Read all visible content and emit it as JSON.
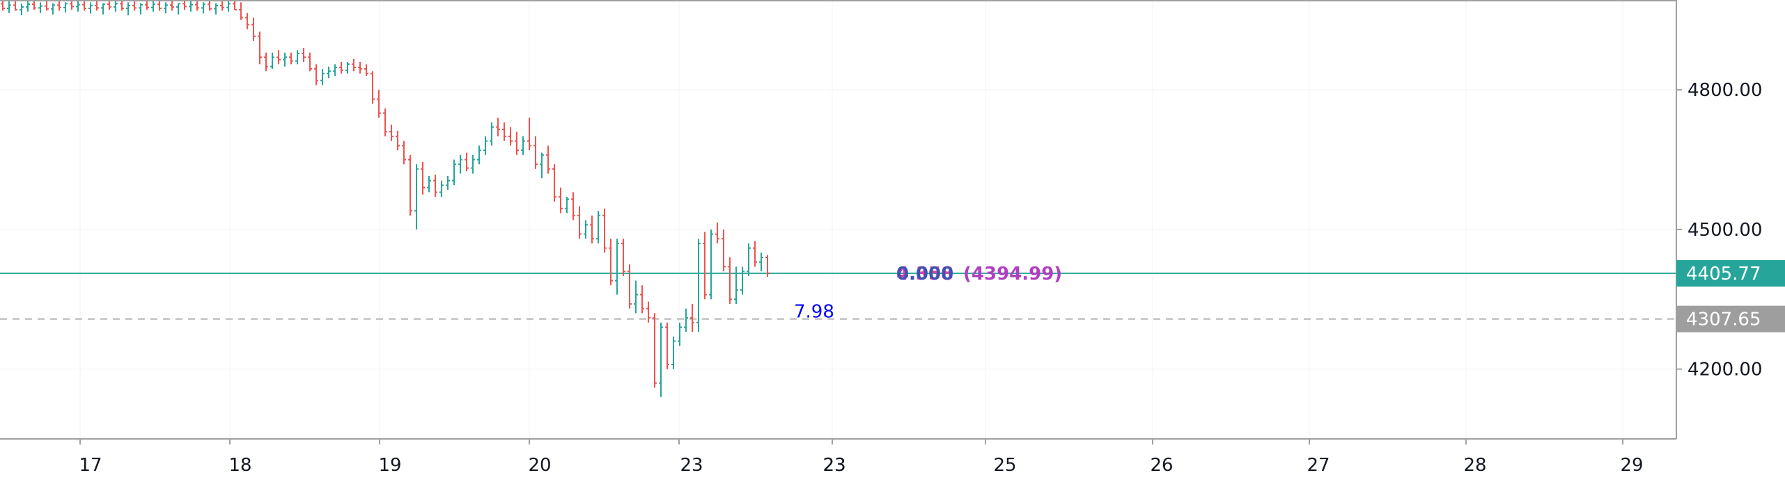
{
  "chart_data": {
    "type": "ohlc",
    "x_tick_labels": [
      "17",
      "18",
      "19",
      "20",
      "23",
      "23",
      "23",
      "25",
      "26",
      "27",
      "28",
      "29"
    ],
    "y_ticks": [
      4200,
      4500,
      4800
    ],
    "y_tick_labels": [
      "4200.00",
      "4500.00",
      "4800.00"
    ],
    "y_range": [
      4050,
      4990
    ],
    "grid": true,
    "bar_colors": {
      "up": "#26a69a",
      "down": "#ef5350"
    },
    "bars": [
      [
        4985,
        4990,
        4970,
        4975
      ],
      [
        4975,
        4990,
        4965,
        4982
      ],
      [
        4982,
        4990,
        4970,
        4972
      ],
      [
        4972,
        4985,
        4960,
        4978
      ],
      [
        4978,
        4990,
        4968,
        4984
      ],
      [
        4984,
        4990,
        4972,
        4976
      ],
      [
        4976,
        4988,
        4965,
        4980
      ],
      [
        4980,
        4990,
        4970,
        4974
      ],
      [
        4974,
        4986,
        4962,
        4982
      ],
      [
        4982,
        4990,
        4970,
        4977
      ],
      [
        4977,
        4988,
        4966,
        4985
      ],
      [
        4985,
        4990,
        4972,
        4979
      ],
      [
        4979,
        4990,
        4968,
        4983
      ],
      [
        4983,
        4990,
        4970,
        4975
      ],
      [
        4975,
        4988,
        4964,
        4981
      ],
      [
        4981,
        4990,
        4970,
        4976
      ],
      [
        4976,
        4986,
        4962,
        4984
      ],
      [
        4984,
        4990,
        4972,
        4978
      ],
      [
        4978,
        4990,
        4968,
        4985
      ],
      [
        4985,
        4990,
        4970,
        4975
      ],
      [
        4975,
        4988,
        4960,
        4981
      ],
      [
        4981,
        4990,
        4970,
        4976
      ],
      [
        4976,
        4986,
        4962,
        4983
      ],
      [
        4983,
        4990,
        4972,
        4977
      ],
      [
        4977,
        4990,
        4968,
        4984
      ],
      [
        4984,
        4990,
        4970,
        4975
      ],
      [
        4975,
        4988,
        4964,
        4982
      ],
      [
        4982,
        4990,
        4970,
        4978
      ],
      [
        4978,
        4986,
        4962,
        4985
      ],
      [
        4985,
        4990,
        4972,
        4979
      ],
      [
        4979,
        4990,
        4968,
        4983
      ],
      [
        4983,
        4990,
        4970,
        4976
      ],
      [
        4976,
        4988,
        4964,
        4984
      ],
      [
        4984,
        4990,
        4970,
        4974
      ],
      [
        4974,
        4986,
        4962,
        4981
      ],
      [
        4981,
        4990,
        4970,
        4977
      ],
      [
        4977,
        4990,
        4968,
        4985
      ],
      [
        4985,
        4990,
        4972,
        4972
      ],
      [
        4972,
        4988,
        4950,
        4955
      ],
      [
        4955,
        4965,
        4930,
        4940
      ],
      [
        4940,
        4955,
        4905,
        4915
      ],
      [
        4915,
        4925,
        4855,
        4870
      ],
      [
        4870,
        4880,
        4840,
        4850
      ],
      [
        4850,
        4880,
        4845,
        4870
      ],
      [
        4870,
        4885,
        4855,
        4865
      ],
      [
        4865,
        4880,
        4850,
        4870
      ],
      [
        4870,
        4880,
        4855,
        4862
      ],
      [
        4862,
        4885,
        4855,
        4878
      ],
      [
        4878,
        4890,
        4860,
        4870
      ],
      [
        4870,
        4880,
        4840,
        4845
      ],
      [
        4845,
        4855,
        4810,
        4820
      ],
      [
        4820,
        4845,
        4810,
        4835
      ],
      [
        4835,
        4850,
        4825,
        4840
      ],
      [
        4840,
        4855,
        4830,
        4848
      ],
      [
        4848,
        4860,
        4835,
        4842
      ],
      [
        4842,
        4860,
        4835,
        4855
      ],
      [
        4855,
        4866,
        4840,
        4848
      ],
      [
        4848,
        4860,
        4835,
        4845
      ],
      [
        4845,
        4855,
        4830,
        4835
      ],
      [
        4835,
        4840,
        4770,
        4780
      ],
      [
        4780,
        4800,
        4740,
        4750
      ],
      [
        4750,
        4760,
        4700,
        4710
      ],
      [
        4710,
        4725,
        4690,
        4700
      ],
      [
        4700,
        4712,
        4670,
        4680
      ],
      [
        4680,
        4690,
        4640,
        4650
      ],
      [
        4650,
        4660,
        4530,
        4540
      ],
      [
        4540,
        4640,
        4500,
        4630
      ],
      [
        4630,
        4645,
        4575,
        4590
      ],
      [
        4590,
        4615,
        4580,
        4605
      ],
      [
        4605,
        4618,
        4570,
        4580
      ],
      [
        4580,
        4605,
        4570,
        4595
      ],
      [
        4595,
        4615,
        4585,
        4605
      ],
      [
        4605,
        4650,
        4595,
        4640
      ],
      [
        4640,
        4660,
        4620,
        4650
      ],
      [
        4650,
        4665,
        4625,
        4632
      ],
      [
        4632,
        4660,
        4620,
        4650
      ],
      [
        4650,
        4680,
        4640,
        4670
      ],
      [
        4670,
        4700,
        4660,
        4690
      ],
      [
        4690,
        4730,
        4680,
        4720
      ],
      [
        4720,
        4740,
        4700,
        4715
      ],
      [
        4715,
        4730,
        4690,
        4700
      ],
      [
        4700,
        4720,
        4680,
        4690
      ],
      [
        4690,
        4710,
        4660,
        4670
      ],
      [
        4670,
        4700,
        4660,
        4690
      ],
      [
        4690,
        4740,
        4670,
        4680
      ],
      [
        4680,
        4700,
        4630,
        4640
      ],
      [
        4640,
        4665,
        4610,
        4660
      ],
      [
        4660,
        4680,
        4620,
        4630
      ],
      [
        4630,
        4640,
        4560,
        4570
      ],
      [
        4570,
        4590,
        4535,
        4545
      ],
      [
        4545,
        4570,
        4535,
        4565
      ],
      [
        4565,
        4580,
        4520,
        4530
      ],
      [
        4530,
        4550,
        4480,
        4490
      ],
      [
        4490,
        4520,
        4480,
        4510
      ],
      [
        4510,
        4530,
        4470,
        4480
      ],
      [
        4480,
        4540,
        4470,
        4530
      ],
      [
        4530,
        4545,
        4450,
        4460
      ],
      [
        4460,
        4480,
        4380,
        4390
      ],
      [
        4390,
        4480,
        4360,
        4470
      ],
      [
        4470,
        4480,
        4400,
        4410
      ],
      [
        4410,
        4425,
        4330,
        4340
      ],
      [
        4340,
        4390,
        4320,
        4360
      ],
      [
        4360,
        4380,
        4320,
        4330
      ],
      [
        4330,
        4345,
        4300,
        4310
      ],
      [
        4310,
        4320,
        4160,
        4170
      ],
      [
        4170,
        4300,
        4140,
        4290
      ],
      [
        4290,
        4300,
        4200,
        4210
      ],
      [
        4210,
        4270,
        4200,
        4260
      ],
      [
        4260,
        4300,
        4250,
        4290
      ],
      [
        4290,
        4330,
        4280,
        4310
      ],
      [
        4310,
        4340,
        4280,
        4300
      ],
      [
        4300,
        4480,
        4280,
        4470
      ],
      [
        4470,
        4495,
        4350,
        4360
      ],
      [
        4360,
        4500,
        4350,
        4490
      ],
      [
        4490,
        4515,
        4470,
        4480
      ],
      [
        4480,
        4500,
        4410,
        4420
      ],
      [
        4420,
        4440,
        4340,
        4350
      ],
      [
        4350,
        4420,
        4340,
        4370
      ],
      [
        4370,
        4420,
        4360,
        4410
      ],
      [
        4410,
        4470,
        4400,
        4460
      ],
      [
        4460,
        4475,
        4420,
        4430
      ],
      [
        4430,
        4450,
        4410,
        4440
      ],
      [
        4440,
        4445,
        4398,
        4406
      ]
    ],
    "current_price": 4405.77,
    "current_price_label": "4405.77",
    "current_price_color": "#26a69a",
    "dashed_price": 4307.65,
    "dashed_price_label": "4307.65",
    "dashed_price_color": "#9e9e9e",
    "annotations": [
      {
        "text": "7.98",
        "color": "#0000ff"
      },
      {
        "text": "4.358",
        "color": "#e040a0"
      },
      {
        "text": "0.000",
        "color": "#3f51b5"
      },
      {
        "text": "(4394.99)",
        "color": "#b040c0"
      }
    ]
  }
}
